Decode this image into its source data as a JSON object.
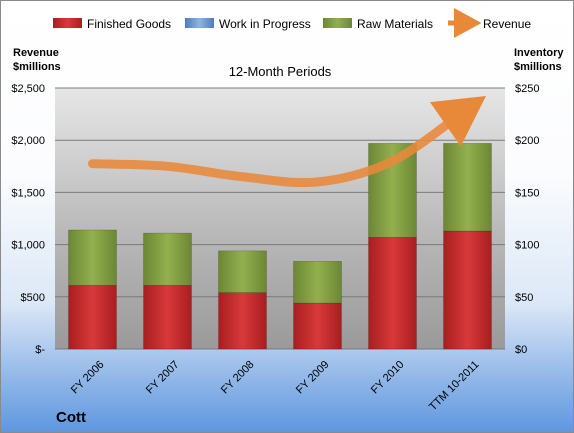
{
  "chart_data": {
    "type": "bar",
    "stacked": true,
    "title": "12-Month Periods",
    "company": "Cott",
    "categories": [
      "FY 2006",
      "FY 2007",
      "FY 2008",
      "FY 2009",
      "FY 2010",
      "TTM 10-2011"
    ],
    "series": [
      {
        "name": "Finished Goods",
        "axis": "right",
        "color": "#c0282a",
        "values": [
          61,
          61,
          54,
          44,
          107,
          113
        ]
      },
      {
        "name": "Work in Progress",
        "axis": "right",
        "color": "#5b87c5",
        "values": [
          0,
          0,
          0,
          0,
          0,
          0
        ]
      },
      {
        "name": "Raw Materials",
        "axis": "right",
        "color": "#7f9b3f",
        "values": [
          53,
          50,
          40,
          40,
          90,
          84
        ]
      },
      {
        "name": "Revenue",
        "type": "line",
        "axis": "left",
        "color": "#e8893a",
        "values": [
          1775,
          1750,
          1650,
          1600,
          1800,
          2300
        ]
      }
    ],
    "left_axis": {
      "label_line1": "Revenue",
      "label_line2": "$millions",
      "range": [
        0,
        2500
      ],
      "ticks": [
        "$-",
        "$500",
        "$1,000",
        "$1,500",
        "$2,000",
        "$2,500"
      ]
    },
    "right_axis": {
      "label_line1": "Inventory",
      "label_line2": "$millions",
      "range": [
        0,
        250
      ],
      "ticks": [
        "$0",
        "$50",
        "$100",
        "$150",
        "$200",
        "$250"
      ]
    },
    "legend_position": "top",
    "grid": true
  }
}
